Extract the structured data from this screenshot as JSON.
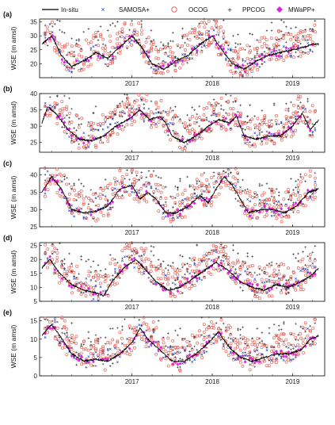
{
  "legend": {
    "insitu": "In-situ",
    "samosa": "SAMOSA+",
    "ocog": "OCOG",
    "ppcog": "PPCOG",
    "mwapp": "MWaPP+"
  },
  "colors": {
    "insitu": "#000000",
    "samosa": "#1f3fbf",
    "ocog": "#e8645a",
    "ppcog": "#333333",
    "mwapp": "#e020e0"
  },
  "chart_data": [
    {
      "type": "scatter",
      "panel_label": "(a)",
      "ylabel": "WSE (m amsl)",
      "x_ticks": [
        "2017",
        "2018",
        "2019"
      ],
      "ylim": [
        15,
        36
      ],
      "y_ticks": [
        20,
        25,
        30,
        35
      ],
      "insitu": [
        [
          2016.38,
          27
        ],
        [
          2016.5,
          30
        ],
        [
          2016.62,
          23
        ],
        [
          2016.75,
          19
        ],
        [
          2016.9,
          21
        ],
        [
          2017.05,
          24
        ],
        [
          2017.2,
          22
        ],
        [
          2017.35,
          26
        ],
        [
          2017.5,
          30
        ],
        [
          2017.62,
          26
        ],
        [
          2017.75,
          20
        ],
        [
          2017.9,
          18
        ],
        [
          2018.05,
          21
        ],
        [
          2018.2,
          23
        ],
        [
          2018.35,
          27
        ],
        [
          2018.5,
          30
        ],
        [
          2018.62,
          25
        ],
        [
          2018.75,
          20
        ],
        [
          2018.9,
          18
        ],
        [
          2019.05,
          21
        ],
        [
          2019.2,
          23
        ],
        [
          2019.35,
          24
        ],
        [
          2019.5,
          25
        ],
        [
          2019.65,
          26
        ],
        [
          2019.75,
          27
        ],
        [
          2019.83,
          27
        ]
      ]
    },
    {
      "type": "scatter",
      "panel_label": "(b)",
      "ylabel": "WSE (m amsl)",
      "x_ticks": [
        "2017",
        "2018",
        "2019"
      ],
      "ylim": [
        22,
        40
      ],
      "y_ticks": [
        25,
        30,
        35,
        40
      ],
      "insitu": [
        [
          2016.38,
          31
        ],
        [
          2016.45,
          36
        ],
        [
          2016.55,
          34
        ],
        [
          2016.7,
          29
        ],
        [
          2016.85,
          26
        ],
        [
          2017.0,
          25.5
        ],
        [
          2017.15,
          27
        ],
        [
          2017.3,
          30
        ],
        [
          2017.45,
          32
        ],
        [
          2017.6,
          35
        ],
        [
          2017.72,
          32
        ],
        [
          2017.85,
          33
        ],
        [
          2017.92,
          31
        ],
        [
          2018.0,
          27
        ],
        [
          2018.15,
          25
        ],
        [
          2018.3,
          27
        ],
        [
          2018.45,
          30
        ],
        [
          2018.58,
          32
        ],
        [
          2018.72,
          31
        ],
        [
          2018.8,
          33
        ],
        [
          2018.9,
          27
        ],
        [
          2019.05,
          26
        ],
        [
          2019.2,
          27
        ],
        [
          2019.35,
          27
        ],
        [
          2019.5,
          30
        ],
        [
          2019.62,
          34
        ],
        [
          2019.72,
          29
        ],
        [
          2019.83,
          32
        ]
      ]
    },
    {
      "type": "scatter",
      "panel_label": "(c)",
      "ylabel": "WSE (m amsl)",
      "x_ticks": [
        "2017",
        "2018",
        "2019"
      ],
      "ylim": [
        25,
        42
      ],
      "y_ticks": [
        25,
        30,
        35,
        40
      ],
      "insitu": [
        [
          2016.38,
          35
        ],
        [
          2016.5,
          39.5
        ],
        [
          2016.62,
          36
        ],
        [
          2016.75,
          30
        ],
        [
          2016.9,
          29
        ],
        [
          2017.05,
          29.5
        ],
        [
          2017.2,
          31
        ],
        [
          2017.35,
          36
        ],
        [
          2017.5,
          37
        ],
        [
          2017.6,
          33
        ],
        [
          2017.7,
          35
        ],
        [
          2017.8,
          33
        ],
        [
          2017.92,
          29
        ],
        [
          2018.05,
          29
        ],
        [
          2018.2,
          31
        ],
        [
          2018.35,
          34
        ],
        [
          2018.45,
          32
        ],
        [
          2018.55,
          36
        ],
        [
          2018.65,
          39.5
        ],
        [
          2018.75,
          37
        ],
        [
          2018.85,
          33
        ],
        [
          2018.95,
          29
        ],
        [
          2019.1,
          30
        ],
        [
          2019.25,
          30
        ],
        [
          2019.4,
          29
        ],
        [
          2019.55,
          31
        ],
        [
          2019.7,
          35
        ],
        [
          2019.83,
          36
        ]
      ]
    },
    {
      "type": "scatter",
      "panel_label": "(d)",
      "ylabel": "WSE (m amsl)",
      "x_ticks": [
        "2017",
        "2018",
        "2019"
      ],
      "ylim": [
        5,
        26
      ],
      "y_ticks": [
        5,
        10,
        15,
        20,
        25
      ],
      "insitu": [
        [
          2016.38,
          17
        ],
        [
          2016.48,
          20
        ],
        [
          2016.6,
          15
        ],
        [
          2016.75,
          11
        ],
        [
          2016.9,
          9
        ],
        [
          2017.05,
          8
        ],
        [
          2017.15,
          7
        ],
        [
          2017.25,
          12
        ],
        [
          2017.4,
          17
        ],
        [
          2017.55,
          20
        ],
        [
          2017.68,
          16
        ],
        [
          2017.8,
          12
        ],
        [
          2017.95,
          9
        ],
        [
          2018.1,
          10
        ],
        [
          2018.25,
          13
        ],
        [
          2018.4,
          16
        ],
        [
          2018.55,
          19
        ],
        [
          2018.7,
          16
        ],
        [
          2018.85,
          12
        ],
        [
          2019.0,
          10
        ],
        [
          2019.15,
          9
        ],
        [
          2019.3,
          11
        ],
        [
          2019.45,
          10
        ],
        [
          2019.6,
          12
        ],
        [
          2019.72,
          14
        ],
        [
          2019.83,
          17
        ]
      ]
    },
    {
      "type": "scatter",
      "panel_label": "(e)",
      "ylabel": "WSE (m amsl)",
      "x_ticks": [
        "2017",
        "2018",
        "2019"
      ],
      "ylim": [
        0,
        16
      ],
      "y_ticks": [
        0,
        5,
        10,
        15
      ],
      "insitu": [
        [
          2016.38,
          11
        ],
        [
          2016.5,
          14
        ],
        [
          2016.6,
          11
        ],
        [
          2016.75,
          6
        ],
        [
          2016.9,
          4
        ],
        [
          2017.05,
          4.5
        ],
        [
          2017.2,
          4
        ],
        [
          2017.35,
          6
        ],
        [
          2017.5,
          9
        ],
        [
          2017.6,
          13
        ],
        [
          2017.7,
          10
        ],
        [
          2017.85,
          7
        ],
        [
          2018.0,
          4
        ],
        [
          2018.15,
          4
        ],
        [
          2018.3,
          6
        ],
        [
          2018.45,
          9
        ],
        [
          2018.58,
          12
        ],
        [
          2018.7,
          8
        ],
        [
          2018.85,
          5
        ],
        [
          2019.0,
          4
        ],
        [
          2019.15,
          5
        ],
        [
          2019.3,
          6
        ],
        [
          2019.45,
          6
        ],
        [
          2019.6,
          7
        ],
        [
          2019.72,
          10
        ],
        [
          2019.83,
          11
        ]
      ]
    }
  ]
}
